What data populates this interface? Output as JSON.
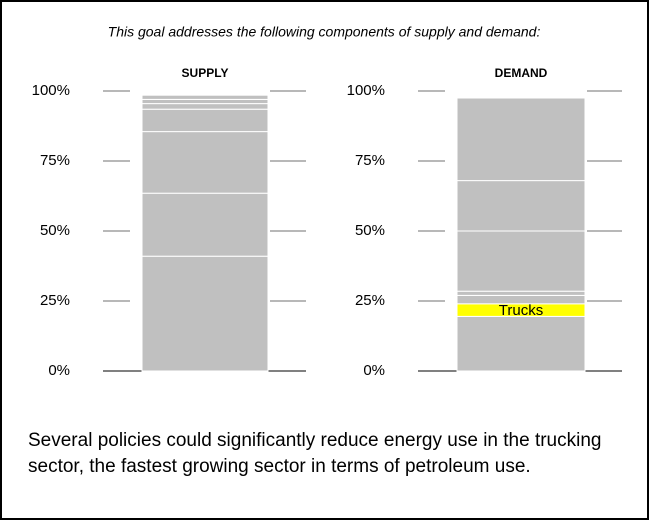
{
  "caption": "This goal addresses the following components of supply and demand:",
  "description": "Several policies could significantly reduce energy use in the trucking sector, the fastest growing sector in terms of petroleum use.",
  "chart_data": [
    {
      "type": "stacked-bar",
      "title": "SUPPLY",
      "color": "#c0c0c0",
      "values": [
        41,
        22.5,
        22,
        8,
        2,
        1.5,
        1.5
      ],
      "ylim": [
        0,
        100
      ],
      "yticks": [
        {
          "value": 0,
          "label": "0%"
        },
        {
          "value": 25,
          "label": "25%"
        },
        {
          "value": 50,
          "label": "50%"
        },
        {
          "value": 75,
          "label": "75%"
        },
        {
          "value": 100,
          "label": "100%"
        }
      ]
    },
    {
      "type": "stacked-bar",
      "title": "DEMAND",
      "color": "#c0c0c0",
      "values": [
        19.5,
        4.5,
        3,
        1.5,
        21.5,
        18,
        29.5
      ],
      "highlight": {
        "index": 1,
        "label": "Trucks",
        "color": "#ffff00"
      },
      "ylim": [
        0,
        100
      ],
      "yticks": [
        {
          "value": 0,
          "label": "0%"
        },
        {
          "value": 25,
          "label": "25%"
        },
        {
          "value": 50,
          "label": "50%"
        },
        {
          "value": 75,
          "label": "75%"
        },
        {
          "value": 100,
          "label": "100%"
        }
      ]
    }
  ]
}
